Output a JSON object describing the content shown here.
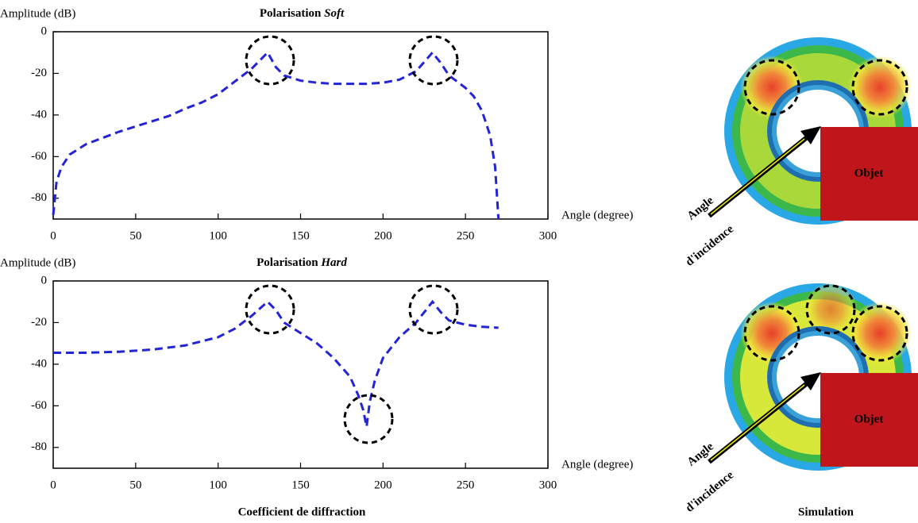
{
  "chart_data": [
    {
      "type": "line",
      "title": {
        "text": "Polarisation",
        "emphasis": "Soft"
      },
      "ylabel": "Amplitude (dB)",
      "xlabel": "Angle (degree)",
      "x": [
        0,
        2,
        5,
        10,
        20,
        30,
        40,
        50,
        60,
        70,
        80,
        90,
        100,
        110,
        120,
        130,
        135,
        140,
        150,
        160,
        170,
        180,
        190,
        200,
        210,
        220,
        230,
        235,
        240,
        250,
        255,
        260,
        265,
        268,
        270
      ],
      "values": [
        -88,
        -72,
        -65,
        -59,
        -54,
        -51,
        -48,
        -45.5,
        -43,
        -40.5,
        -37,
        -34,
        -30,
        -24,
        -18,
        -10,
        -17,
        -21,
        -23.5,
        -24.5,
        -25,
        -25,
        -25,
        -24.5,
        -23,
        -19,
        -10,
        -15,
        -21,
        -27,
        -31,
        -38,
        -50,
        -65,
        -90
      ],
      "color": "#2323d8",
      "xlim": [
        0,
        300
      ],
      "xticks": [
        0,
        50,
        100,
        150,
        200,
        250,
        300
      ],
      "ylim": [
        -90,
        0
      ],
      "yticks": [
        0,
        -20,
        -40,
        -60,
        -80
      ]
    },
    {
      "type": "line",
      "title": {
        "text": "Polarisation",
        "emphasis": "Hard"
      },
      "ylabel": "Amplitude (dB)",
      "xlabel": "Angle (degree)",
      "x": [
        0,
        20,
        40,
        60,
        80,
        100,
        110,
        120,
        130,
        135,
        140,
        150,
        160,
        170,
        180,
        185,
        188,
        190,
        192,
        195,
        200,
        210,
        220,
        225,
        230,
        235,
        240,
        250,
        260,
        270
      ],
      "values": [
        -34.5,
        -34.5,
        -34,
        -33,
        -31,
        -27,
        -23,
        -17,
        -10,
        -14,
        -20,
        -25,
        -30,
        -37,
        -46,
        -55,
        -62,
        -70,
        -58,
        -48,
        -37,
        -27,
        -20,
        -15,
        -10,
        -15,
        -19,
        -21,
        -22,
        -22.5
      ],
      "color": "#2323d8",
      "xlim": [
        0,
        300
      ],
      "xticks": [
        0,
        50,
        100,
        150,
        200,
        250,
        300
      ],
      "ylim": [
        -90,
        0
      ],
      "yticks": [
        0,
        -20,
        -40,
        -60,
        -80
      ]
    }
  ],
  "captions": {
    "charts": "Coefficient de diffraction",
    "simulation": "Simulation"
  },
  "simulation": [
    {
      "object_label": "Objet",
      "arrow_label": [
        "Angle",
        "d'incidence"
      ]
    },
    {
      "object_label": "Objet",
      "arrow_label": [
        "Angle",
        "d'incidence"
      ]
    }
  ]
}
